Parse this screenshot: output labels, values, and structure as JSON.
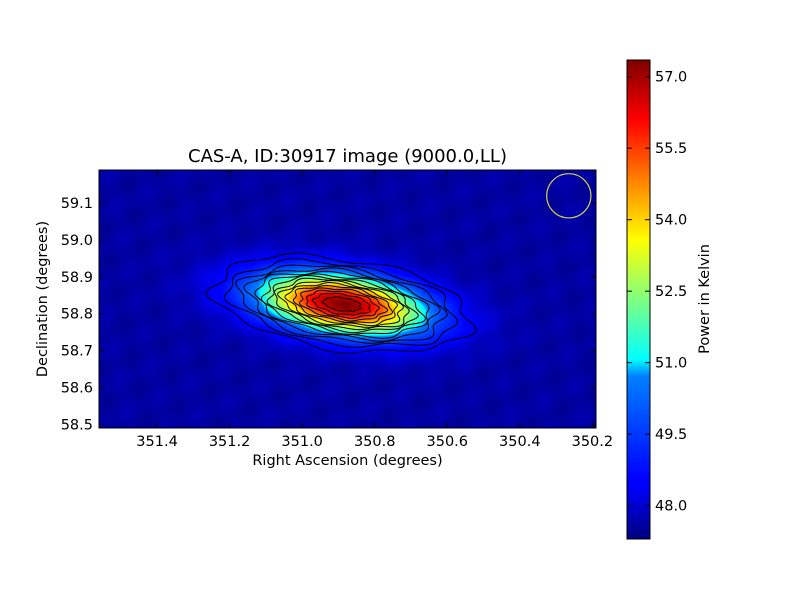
{
  "chart_data": {
    "type": "heatmap",
    "title": "CAS-A, ID:30917 image (9000.0,LL)",
    "xlabel": "Right Ascension (degrees)",
    "ylabel": "Declination (degrees)",
    "xlim": [
      351.56,
      350.19
    ],
    "ylim": [
      58.49,
      59.19
    ],
    "x_ticks": [
      {
        "value": 351.4,
        "label": "351.4"
      },
      {
        "value": 351.2,
        "label": "351.2"
      },
      {
        "value": 351.0,
        "label": "351.0"
      },
      {
        "value": 350.8,
        "label": "350.8"
      },
      {
        "value": 350.6,
        "label": "350.6"
      },
      {
        "value": 350.4,
        "label": "350.4"
      },
      {
        "value": 350.2,
        "label": "350.2"
      }
    ],
    "y_ticks": [
      {
        "value": 58.5,
        "label": "58.5"
      },
      {
        "value": 58.6,
        "label": "58.6"
      },
      {
        "value": 58.7,
        "label": "58.7"
      },
      {
        "value": 58.8,
        "label": "58.8"
      },
      {
        "value": 58.9,
        "label": "58.9"
      },
      {
        "value": 59.0,
        "label": "59.0"
      },
      {
        "value": 59.1,
        "label": "59.1"
      }
    ],
    "source": {
      "ra": 350.89,
      "dec": 58.826,
      "peak_kelvin": 57.3,
      "background_kelvin": 47.6,
      "sigma_ra": 0.16,
      "sigma_dec": 0.055,
      "tilt_deg": 8
    },
    "contour_levels": [
      48.4,
      49.0,
      49.6,
      50.2,
      50.8,
      51.4,
      52.0,
      52.6,
      53.2,
      53.8,
      54.4,
      55.0,
      55.6,
      56.2,
      56.8
    ],
    "beam": {
      "ra": 350.265,
      "dec": 59.12,
      "radius_dec": 0.06,
      "color": "#cccc44"
    },
    "colorbar": {
      "label": "Power in Kelvin",
      "vmin": 47.3,
      "vmax": 57.35,
      "ticks": [
        {
          "value": 48.0,
          "label": "48.0"
        },
        {
          "value": 49.5,
          "label": "49.5"
        },
        {
          "value": 51.0,
          "label": "51.0"
        },
        {
          "value": 52.5,
          "label": "52.5"
        },
        {
          "value": 54.0,
          "label": "54.0"
        },
        {
          "value": 55.5,
          "label": "55.5"
        },
        {
          "value": 57.0,
          "label": "57.0"
        }
      ]
    }
  }
}
